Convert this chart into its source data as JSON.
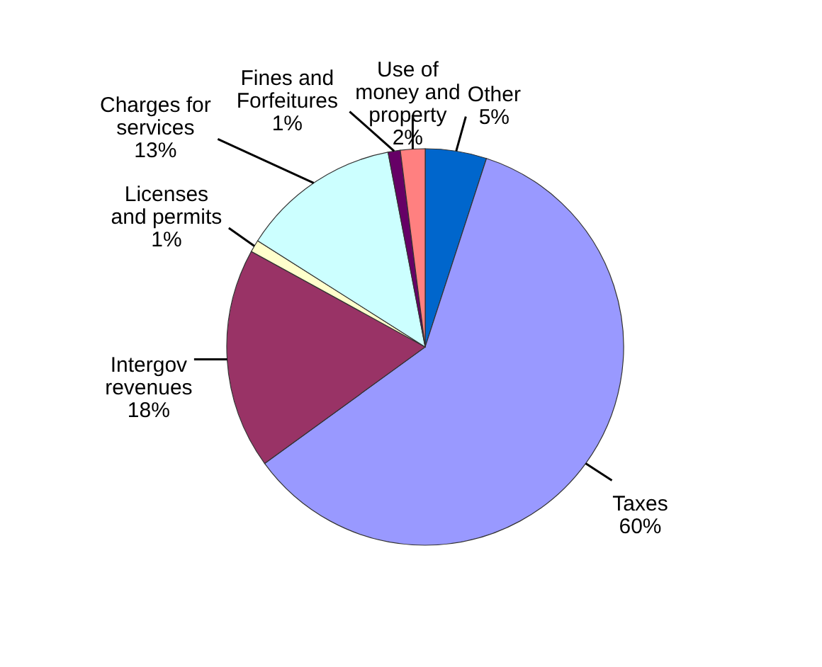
{
  "chart_data": {
    "type": "pie",
    "categories": [
      "Other",
      "Taxes",
      "Intergov revenues",
      "Licenses and permits",
      "Charges for services",
      "Fines and Forfeitures",
      "Use of money and property"
    ],
    "values": [
      5,
      60,
      18,
      1,
      13,
      1,
      2
    ],
    "colors": [
      "#0066cc",
      "#9999ff",
      "#993366",
      "#ffffcc",
      "#ccffff",
      "#660066",
      "#ff8080"
    ],
    "value_labels": [
      "5%",
      "60%",
      "18%",
      "1%",
      "13%",
      "1%",
      "2%"
    ]
  }
}
